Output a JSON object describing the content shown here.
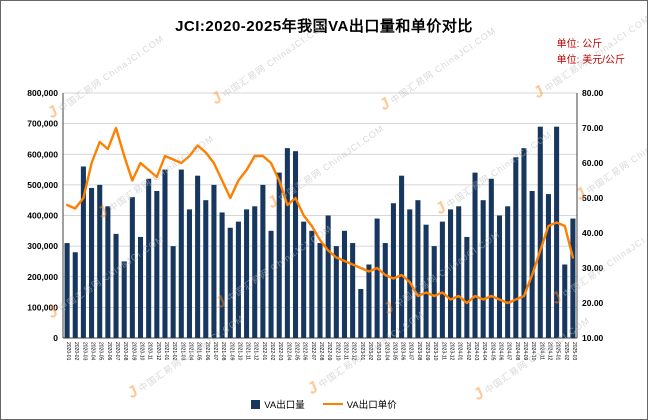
{
  "title": "JCI:2020-2025年我国VA出口量和单价对比",
  "units": {
    "left": "单位: 公斤",
    "right": "单位: 美元/公斤"
  },
  "watermark": {
    "cn": "中国汇易网",
    "en": "ChinaJCI.COM",
    "logo": "J"
  },
  "legend": [
    {
      "label": "VA出口量",
      "type": "bar",
      "color": "#17375e"
    },
    {
      "label": "VA出口单价",
      "type": "line",
      "color": "#ff7f00"
    }
  ],
  "chart_data": {
    "type": "bar",
    "subtype": "bar+line combo, dual axis",
    "title": "JCI:2020-2025年我国VA出口量和单价对比",
    "xlabel": "",
    "ylabel_left": "公斤",
    "ylabel_right": "美元/公斤",
    "grid": true,
    "legend_position": "bottom",
    "left_axis": {
      "min": 0,
      "max": 800000,
      "step": 100000,
      "tick_labels": [
        "0",
        "100,000",
        "200,000",
        "300,000",
        "400,000",
        "500,000",
        "600,000",
        "700,000",
        "800,000"
      ]
    },
    "right_axis": {
      "min": 10,
      "max": 80,
      "step": 10,
      "tick_labels": [
        "10.00",
        "20.00",
        "30.00",
        "40.00",
        "50.00",
        "60.00",
        "70.00",
        "80.00"
      ]
    },
    "categories": [
      "2020-01",
      "2020-02",
      "2020-03",
      "2020-04",
      "2020-05",
      "2020-06",
      "2020-07",
      "2020-08",
      "2020-09",
      "2020-10",
      "2020-11",
      "2020-12",
      "2021-01",
      "2021-02",
      "2021-03",
      "2021-04",
      "2021-05",
      "2021-06",
      "2021-07",
      "2021-08",
      "2021-09",
      "2021-10",
      "2021-11",
      "2021-12",
      "2022-01",
      "2022-02",
      "2022-03",
      "2022-04",
      "2022-05",
      "2022-06",
      "2022-07",
      "2022-08",
      "2022-09",
      "2022-10",
      "2022-11",
      "2022-12",
      "2023-01",
      "2023-02",
      "2023-03",
      "2023-04",
      "2023-05",
      "2023-06",
      "2023-07",
      "2023-08",
      "2023-09",
      "2023-10",
      "2023-11",
      "2023-12",
      "2024-01",
      "2024-02",
      "2024-03",
      "2024-04",
      "2024-05",
      "2024-06",
      "2024-07",
      "2024-08",
      "2024-09",
      "2024-10",
      "2024-11",
      "2024-12",
      "2025-01",
      "2025-02",
      "2025-03"
    ],
    "series": [
      {
        "name": "VA出口量",
        "type": "bar",
        "axis": "left",
        "color": "#17375e",
        "values": [
          310000,
          280000,
          560000,
          490000,
          500000,
          430000,
          340000,
          250000,
          460000,
          330000,
          520000,
          480000,
          550000,
          300000,
          550000,
          420000,
          530000,
          450000,
          500000,
          410000,
          360000,
          380000,
          420000,
          430000,
          500000,
          350000,
          540000,
          620000,
          610000,
          380000,
          350000,
          310000,
          400000,
          300000,
          350000,
          310000,
          160000,
          240000,
          390000,
          310000,
          440000,
          530000,
          420000,
          450000,
          370000,
          300000,
          380000,
          420000,
          430000,
          330000,
          540000,
          450000,
          520000,
          400000,
          430000,
          590000,
          620000,
          480000,
          690000,
          470000,
          690000,
          240000,
          390000
        ]
      },
      {
        "name": "VA出口单价",
        "type": "line",
        "axis": "right",
        "color": "#ff7f00",
        "values": [
          48,
          47,
          50,
          60,
          66,
          64,
          70,
          62,
          55,
          60,
          58,
          56,
          62,
          61,
          60,
          62,
          65,
          63,
          60,
          55,
          50,
          55,
          58,
          62,
          62,
          60,
          55,
          48,
          50,
          45,
          42,
          38,
          35,
          33,
          32,
          31,
          30,
          29,
          30,
          28,
          27,
          28,
          26,
          22,
          23,
          22,
          23,
          21,
          22,
          20,
          22,
          21,
          22,
          21,
          20,
          21,
          22,
          28,
          35,
          42,
          43,
          42,
          33
        ]
      }
    ]
  }
}
